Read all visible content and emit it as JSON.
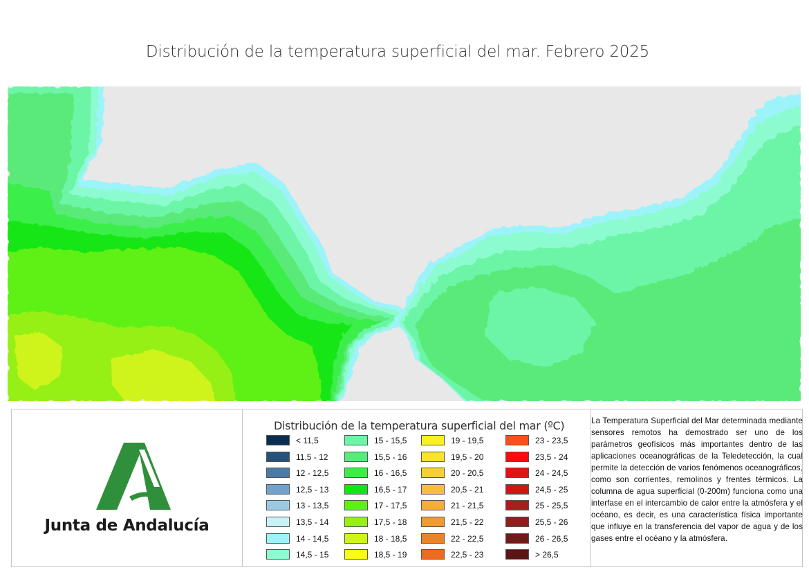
{
  "title": "Distribución de la temperatura superficial del mar. Febrero 2025",
  "logo": {
    "org_name": "Junta de Andalucía"
  },
  "legend": {
    "title": "Distribución de la temperatura superficial del mar (ºC)",
    "items": [
      {
        "label": "< 11,5",
        "color": "#0a2e50"
      },
      {
        "label": "11,5 - 12",
        "color": "#26517c"
      },
      {
        "label": "12 - 12,5",
        "color": "#4b7aa5"
      },
      {
        "label": "12,5 - 13",
        "color": "#72a2cc"
      },
      {
        "label": "13 - 13,5",
        "color": "#9cc9e2"
      },
      {
        "label": "13,5 - 14",
        "color": "#c9f2f6"
      },
      {
        "label": "14 - 14,5",
        "color": "#9cf4fa"
      },
      {
        "label": "14,5 - 15",
        "color": "#8cfbcf"
      },
      {
        "label": "15 - 15,5",
        "color": "#6cf5a6"
      },
      {
        "label": "15,5 - 16",
        "color": "#5aea7a"
      },
      {
        "label": "16 - 16,5",
        "color": "#3aee4a"
      },
      {
        "label": "16,5 - 17",
        "color": "#12e612"
      },
      {
        "label": "17 - 17,5",
        "color": "#5ef012"
      },
      {
        "label": "17,5 - 18",
        "color": "#96f012"
      },
      {
        "label": "18 - 18,5",
        "color": "#cff41a"
      },
      {
        "label": "18,5 - 19",
        "color": "#fbfb16"
      },
      {
        "label": "19 - 19,5",
        "color": "#fbf022"
      },
      {
        "label": "19,5 - 20",
        "color": "#f9e230"
      },
      {
        "label": "20 - 20,5",
        "color": "#f6ce35"
      },
      {
        "label": "20,5 - 21",
        "color": "#f5be3c"
      },
      {
        "label": "21 - 21,5",
        "color": "#f2ae3a"
      },
      {
        "label": "21,5 - 22",
        "color": "#ef9a33"
      },
      {
        "label": "22 - 22,5",
        "color": "#ec8228"
      },
      {
        "label": "22,5 - 23",
        "color": "#ee6a1e"
      },
      {
        "label": "23 - 23,5",
        "color": "#fa5020"
      },
      {
        "label": "23,5 - 24",
        "color": "#ff0a0a"
      },
      {
        "label": "24 - 24,5",
        "color": "#e01414"
      },
      {
        "label": "24,5 - 25",
        "color": "#c81818"
      },
      {
        "label": "25 - 25,5",
        "color": "#a91d1d"
      },
      {
        "label": "25,5 - 26",
        "color": "#8f1e1e"
      },
      {
        "label": "26 - 26,5",
        "color": "#721a1a"
      },
      {
        "label": "> 26,5",
        "color": "#5a1515"
      }
    ]
  },
  "description": "La Temperatura Superficial del Mar determinada mediante sensores remotos ha demostrado ser uno de los parámetros geofísicos más importantes dentro de las aplicaciones oceanográficas de la Teledetección, la cual permite la detección de varios fenómenos oceanográficos, como son corrientes, remolinos y frentes térmicos. La columna de agua superficial (0-200m) funciona como una interfase en el intercambio de calor entre la atmósfera y el océano, es decir, es una característica física importante que influye en la transferencia del vapor de agua y de los gases entre el océano y la atmósfera.",
  "map": {
    "land_color": "#e8e8e8",
    "region_colors": {
      "coastal_cool": "#9cf4fa",
      "band_14_5": "#8cfbcf",
      "band_15": "#6cf5a6",
      "band_15_5": "#5aea7a",
      "band_16": "#3aee4a",
      "band_16_5": "#12e612",
      "band_17": "#5ef012",
      "band_17_5": "#96f012",
      "band_18": "#cff41a"
    }
  }
}
